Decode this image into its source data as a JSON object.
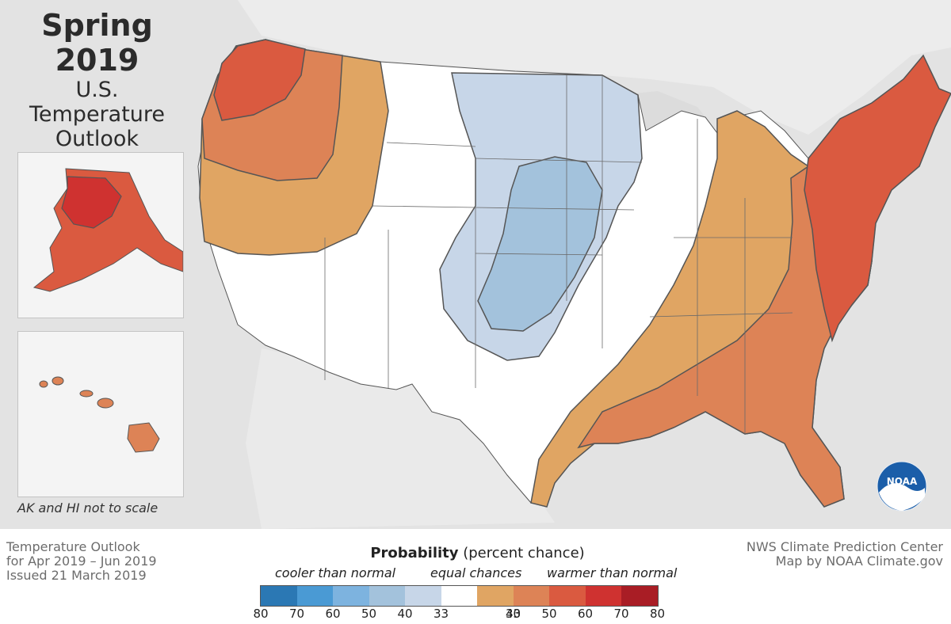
{
  "title": {
    "line1": "Spring 2019",
    "line2": "U.S.",
    "line3": "Temperature",
    "line4": "Outlook"
  },
  "scale_note": "AK and HI not to scale",
  "footer_left": {
    "line1": "Temperature Outlook",
    "line2": "for Apr 2019 – Jun 2019",
    "line3": "Issued 21 March 2019"
  },
  "footer_right": {
    "line1": "NWS Climate Prediction Center",
    "line2": "Map by NOAA Climate.gov"
  },
  "logo_text": "NOAA",
  "legend": {
    "title_bold": "Probability",
    "title_rest": " (percent chance)",
    "cooler_label": "cooler than normal",
    "equal_label": "equal chances",
    "warmer_label": "warmer than normal",
    "colors": [
      "#2b78b4",
      "#4a9ad4",
      "#7db3df",
      "#a3c2dc",
      "#c7d6e8",
      "#ffffff",
      "#e0a563",
      "#dd8356",
      "#da5a40",
      "#cf3230",
      "#a91d25"
    ],
    "ticks": [
      "80",
      "70",
      "60",
      "50",
      "40",
      "33",
      "33",
      "40",
      "50",
      "60",
      "70",
      "80"
    ]
  },
  "colors": {
    "background": "#e3e3e3",
    "cooler_40": "#c7d6e8",
    "cooler_50": "#a3c2dc",
    "warmer_40": "#e0a563",
    "warmer_50": "#dd8356",
    "warmer_60": "#da5a40",
    "warmer_70": "#cf3230"
  }
}
